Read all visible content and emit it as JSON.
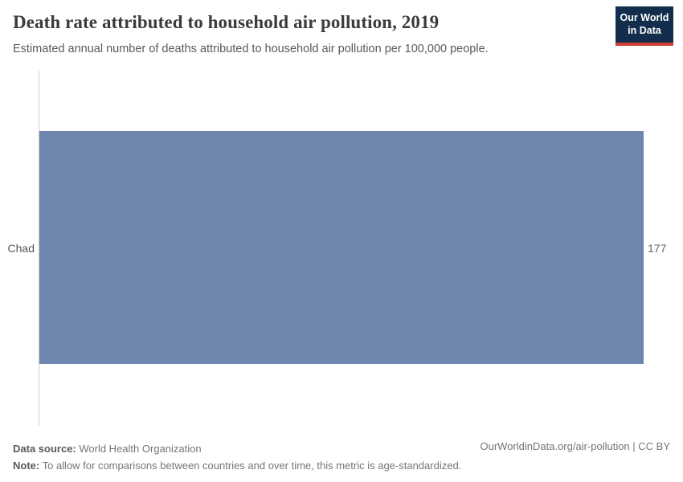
{
  "header": {
    "title": "Death rate attributed to household air pollution, 2019",
    "subtitle": "Estimated annual number of deaths attributed to household air pollution per 100,000 people.",
    "logo": {
      "line1": "Our World",
      "line2": "in Data"
    }
  },
  "chart_data": {
    "type": "bar",
    "orientation": "horizontal",
    "title": "Death rate attributed to household air pollution, 2019",
    "categories": [
      "Chad"
    ],
    "values": [
      177
    ],
    "value_labels": [
      "177"
    ],
    "xlim": [
      0,
      177
    ],
    "grid": false,
    "legend": false,
    "bar_color": "#6e85ad"
  },
  "colors": {
    "bar": "#6e85ad",
    "axis_line": "#cfcfcf",
    "logo_background": "#132e4d",
    "logo_accent": "#d13d33",
    "title_text": "#3b3b3b",
    "body_text": "#595959",
    "footer_text": "#757575"
  },
  "footer": {
    "data_source_label": "Data source:",
    "data_source_value": " World Health Organization",
    "note_label": "Note:",
    "note_value": " To allow for comparisons between countries and over time, this metric is age-standardized.",
    "license": "OurWorldinData.org/air-pollution | CC BY"
  }
}
